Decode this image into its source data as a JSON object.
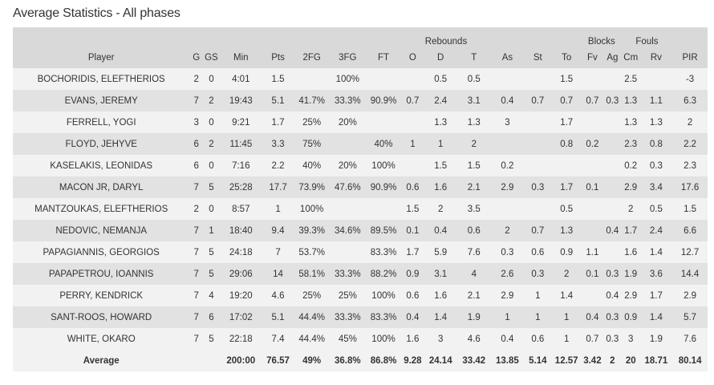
{
  "title": "Average Statistics - All phases",
  "group_headers": {
    "rebounds": "Rebounds",
    "blocks": "Blocks",
    "fouls": "Fouls"
  },
  "columns": [
    "Player",
    "G",
    "GS",
    "Min",
    "Pts",
    "2FG",
    "3FG",
    "FT",
    "O",
    "D",
    "T",
    "As",
    "St",
    "To",
    "Fv",
    "Ag",
    "Cm",
    "Rv",
    "PIR"
  ],
  "rows": [
    [
      "BOCHORIDIS, ELEFTHERIOS",
      "2",
      "0",
      "4:01",
      "1.5",
      "",
      "100%",
      "",
      "",
      "0.5",
      "0.5",
      "",
      "",
      "1.5",
      "",
      "",
      "2.5",
      "",
      "-3"
    ],
    [
      "EVANS, JEREMY",
      "7",
      "2",
      "19:43",
      "5.1",
      "41.7%",
      "33.3%",
      "90.9%",
      "0.7",
      "2.4",
      "3.1",
      "0.4",
      "0.7",
      "0.7",
      "0.7",
      "0.3",
      "1.3",
      "1.1",
      "6.3"
    ],
    [
      "FERRELL, YOGI",
      "3",
      "0",
      "9:21",
      "1.7",
      "25%",
      "20%",
      "",
      "",
      "1.3",
      "1.3",
      "3",
      "",
      "1.7",
      "",
      "",
      "1.3",
      "1.3",
      "2"
    ],
    [
      "FLOYD, JEHYVE",
      "6",
      "2",
      "11:45",
      "3.3",
      "75%",
      "",
      "40%",
      "1",
      "1",
      "2",
      "",
      "",
      "0.8",
      "0.2",
      "",
      "2.3",
      "0.8",
      "2.2"
    ],
    [
      "KASELAKIS, LEONIDAS",
      "6",
      "0",
      "7:16",
      "2.2",
      "40%",
      "20%",
      "100%",
      "",
      "1.5",
      "1.5",
      "0.2",
      "",
      "",
      "",
      "",
      "0.2",
      "0.3",
      "2.3"
    ],
    [
      "MACON JR, DARYL",
      "7",
      "5",
      "25:28",
      "17.7",
      "73.9%",
      "47.6%",
      "90.9%",
      "0.6",
      "1.6",
      "2.1",
      "2.9",
      "0.3",
      "1.7",
      "0.1",
      "",
      "2.9",
      "3.4",
      "17.6"
    ],
    [
      "MANTZOUKAS, ELEFTHERIOS",
      "2",
      "0",
      "8:57",
      "1",
      "100%",
      "",
      "",
      "1.5",
      "2",
      "3.5",
      "",
      "",
      "0.5",
      "",
      "",
      "2",
      "0.5",
      "1.5"
    ],
    [
      "NEDOVIC, NEMANJA",
      "7",
      "1",
      "18:40",
      "9.4",
      "39.3%",
      "34.6%",
      "89.5%",
      "0.1",
      "0.4",
      "0.6",
      "2",
      "0.7",
      "1.3",
      "",
      "0.4",
      "1.7",
      "2.4",
      "6.6"
    ],
    [
      "PAPAGIANNIS, GEORGIOS",
      "7",
      "5",
      "24:18",
      "7",
      "53.7%",
      "",
      "83.3%",
      "1.7",
      "5.9",
      "7.6",
      "0.3",
      "0.6",
      "0.9",
      "1.1",
      "",
      "1.6",
      "1.4",
      "12.7"
    ],
    [
      "PAPAPETROU, IOANNIS",
      "7",
      "5",
      "29:06",
      "14",
      "58.1%",
      "33.3%",
      "88.2%",
      "0.9",
      "3.1",
      "4",
      "2.6",
      "0.3",
      "2",
      "0.1",
      "0.3",
      "1.9",
      "3.6",
      "14.4"
    ],
    [
      "PERRY, KENDRICK",
      "7",
      "4",
      "19:20",
      "4.6",
      "25%",
      "25%",
      "100%",
      "0.6",
      "1.6",
      "2.1",
      "2.9",
      "1",
      "1.4",
      "",
      "0.4",
      "2.9",
      "1.7",
      "2.9"
    ],
    [
      "SANT-ROOS, HOWARD",
      "7",
      "6",
      "17:02",
      "5.1",
      "44.4%",
      "33.3%",
      "83.3%",
      "0.4",
      "1.4",
      "1.9",
      "1",
      "1",
      "1",
      "0.4",
      "0.3",
      "0.9",
      "1.4",
      "5.7"
    ],
    [
      "WHITE, OKARO",
      "7",
      "5",
      "22:18",
      "7.4",
      "44.4%",
      "45%",
      "100%",
      "1.6",
      "3",
      "4.6",
      "0.4",
      "0.6",
      "1",
      "0.7",
      "0.3",
      "3",
      "1.9",
      "7.6"
    ]
  ],
  "average": [
    "Average",
    "",
    "",
    "200:00",
    "76.57",
    "49%",
    "36.8%",
    "86.8%",
    "9.28",
    "24.14",
    "33.42",
    "13.85",
    "5.14",
    "12.57",
    "3.42",
    "2",
    "20",
    "18.71",
    "80.14"
  ]
}
